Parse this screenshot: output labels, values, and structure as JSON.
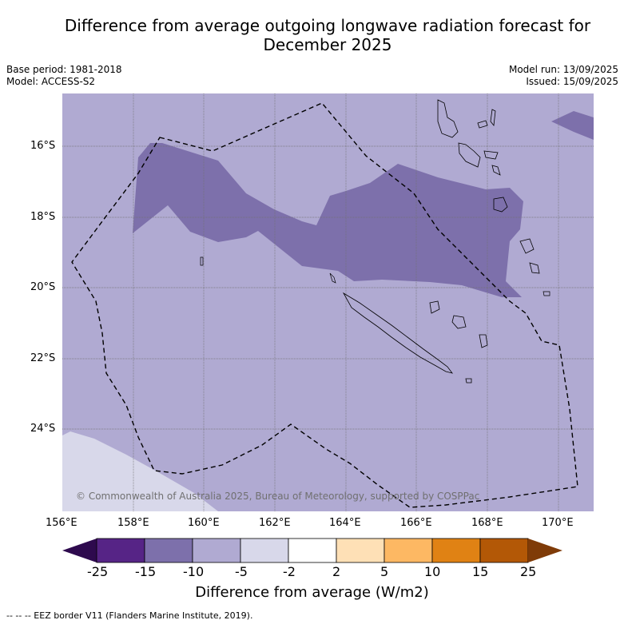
{
  "title_line1": "Difference from average outgoing longwave radiation forecast for",
  "title_line2": "December 2025",
  "base_period": "Base period: 1981-2018",
  "model": "Model: ACCESS-S2",
  "model_run": "Model run: 13/09/2025",
  "issued": "Issued: 15/09/2025",
  "lat_labels": [
    "16°S",
    "18°S",
    "20°S",
    "22°S",
    "24°S"
  ],
  "lon_labels": [
    "156°E",
    "158°E",
    "160°E",
    "162°E",
    "164°E",
    "166°E",
    "168°E",
    "170°E"
  ],
  "copyright": "© Commonwealth of Australia 2025, Bureau of Meteorology, supported by COSPPac",
  "colorbar": {
    "ticks": [
      "-25",
      "-15",
      "-10",
      "-5",
      "-2",
      "2",
      "5",
      "10",
      "15",
      "25"
    ],
    "colors": [
      "#2e0a4e",
      "#562486",
      "#7d70ab",
      "#b0aad2",
      "#d8d8ea",
      "#ffffff",
      "#fee0b6",
      "#fdb863",
      "#e08214",
      "#b35806",
      "#7f3b08"
    ],
    "label": "Difference from average (W/m2)"
  },
  "eez_note": "--  --  -- EEZ border V11 (Flanders Marine Institute, 2019)."
}
